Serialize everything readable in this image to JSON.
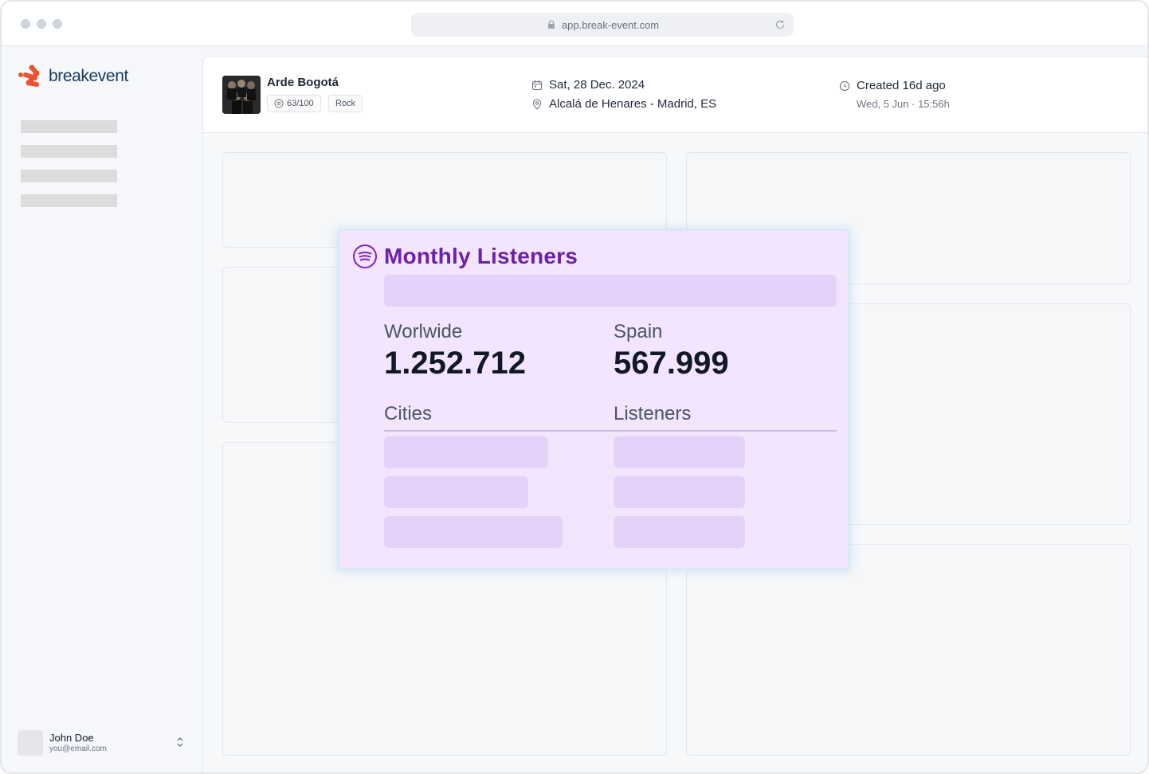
{
  "browser": {
    "url": "app.break-event.com"
  },
  "sidebar": {
    "logo_text": "breakevent",
    "user": {
      "name": "John Doe",
      "email": "you@email.com"
    }
  },
  "event": {
    "artist": "Arde Bogotá",
    "score": "63/100",
    "genre": "Rock",
    "date": "Sat, 28 Dec. 2024",
    "location": "Alcalá de Henares - Madrid, ES",
    "created": "Created 16d ago",
    "created_at": "Wed, 5 Jun · 15:56h"
  },
  "listeners_card": {
    "title": "Monthly Listeners",
    "worldwide_label": "Worlwide",
    "worldwide_value": "1.252.712",
    "spain_label": "Spain",
    "spain_value": "567.999",
    "cities_header": "Cities",
    "listeners_header": "Listeners"
  },
  "colors": {
    "brand_orange": "#e8552f",
    "brand_navy": "#173a5e",
    "spotify_accent": "#6b21a8",
    "popup_bg": "#f3e5fd"
  }
}
